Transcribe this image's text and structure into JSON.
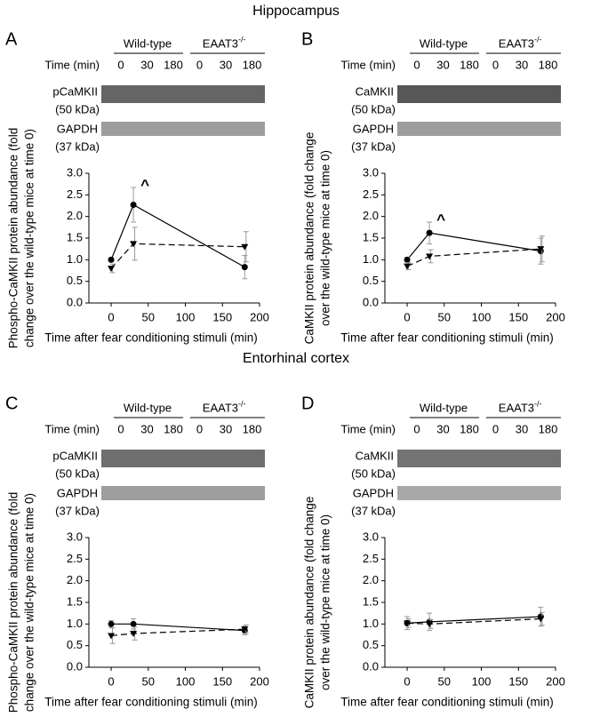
{
  "headings": [
    "Hippocampus",
    "Entorhinal cortex"
  ],
  "chart_data": [
    {
      "type": "line",
      "panel_label": "A",
      "blot": {
        "groups": [
          {
            "label": "Wild-type"
          },
          {
            "label": "EAAT3",
            "sup": "-/-"
          }
        ],
        "time_label": "Time (min)",
        "times": [
          0,
          30,
          180,
          0,
          30,
          180
        ],
        "bands": [
          {
            "name": "pCaMKII",
            "size": "(50 kDa)",
            "color": "#4a4a4a"
          },
          {
            "name": "GAPDH",
            "size": "(37 kDa)",
            "color": "#8c8c8c"
          }
        ]
      },
      "ylabel": [
        "Phospho-CaMKII protein abundance (fold",
        "change over the wild-type mice at time 0)"
      ],
      "xlabel": "Time after fear conditioning stimuli (min)",
      "xlim": [
        -30,
        200
      ],
      "xticks": [
        0,
        50,
        100,
        150,
        200
      ],
      "ylim": [
        0,
        3
      ],
      "yticks": [
        {
          "value": 0,
          "label": "0.0"
        },
        0.5,
        {
          "value": 1,
          "label": "1.0"
        },
        1.5,
        {
          "value": 2,
          "label": "2.0"
        },
        2.5,
        {
          "value": 3,
          "label": "3.0"
        }
      ],
      "x": [
        0,
        30,
        180
      ],
      "series": [
        {
          "color": "#000000",
          "marker": "circle",
          "dashed": false,
          "values": [
            1.0,
            2.27,
            0.83
          ],
          "errors": [
            0.05,
            0.4,
            0.27
          ],
          "point_labels": [
            null,
            "^",
            null
          ]
        },
        {
          "color": "#000000",
          "marker": "triangle",
          "dashed": true,
          "values": [
            0.8,
            1.37,
            1.3
          ],
          "errors": [
            0.1,
            0.38,
            0.35
          ]
        }
      ]
    },
    {
      "type": "line",
      "panel_label": "B",
      "blot": {
        "groups": [
          {
            "label": "Wild-type"
          },
          {
            "label": "EAAT3",
            "sup": "-/-"
          }
        ],
        "time_label": "Time (min)",
        "times": [
          0,
          30,
          180,
          0,
          30,
          180
        ],
        "bands": [
          {
            "name": "CaMKII",
            "size": "(50 kDa)",
            "color": "#3a3a3a"
          },
          {
            "name": "GAPDH",
            "size": "(37 kDa)",
            "color": "#8c8c8c"
          }
        ]
      },
      "ylabel": [
        "CaMKII protein abundance (fold change",
        "over the wild-type mice at time 0)"
      ],
      "xlabel": "Time after fear conditioning stimuli (min)",
      "xlim": [
        -30,
        200
      ],
      "xticks": [
        0,
        50,
        100,
        150,
        200
      ],
      "ylim": [
        0,
        3
      ],
      "yticks": [
        {
          "value": 0,
          "label": "0.0"
        },
        0.5,
        {
          "value": 1,
          "label": "1.0"
        },
        1.5,
        {
          "value": 2,
          "label": "2.0"
        },
        2.5,
        {
          "value": 3,
          "label": "3.0"
        }
      ],
      "x": [
        0,
        30,
        180
      ],
      "series": [
        {
          "color": "#000000",
          "marker": "circle",
          "dashed": false,
          "values": [
            1.0,
            1.62,
            1.2
          ],
          "errors": [
            0.05,
            0.25,
            0.3
          ],
          "point_labels": [
            null,
            "^",
            null
          ]
        },
        {
          "color": "#000000",
          "marker": "triangle",
          "dashed": true,
          "values": [
            0.85,
            1.08,
            1.25
          ],
          "errors": [
            0.08,
            0.15,
            0.3
          ]
        }
      ]
    },
    {
      "type": "line",
      "panel_label": "C",
      "blot": {
        "groups": [
          {
            "label": "Wild-type"
          },
          {
            "label": "EAAT3",
            "sup": "-/-"
          }
        ],
        "time_label": "Time (min)",
        "times": [
          0,
          30,
          180,
          0,
          30,
          180
        ],
        "bands": [
          {
            "name": "pCaMKII",
            "size": "(50 kDa)",
            "color": "#555555"
          },
          {
            "name": "GAPDH",
            "size": "(37 kDa)",
            "color": "#8c8c8c"
          }
        ]
      },
      "ylabel": [
        "Phospho-CaMKII protein abundance (fold",
        "change over the wild-type mice at time 0)"
      ],
      "xlabel": "Time after fear conditioning stimuli (min)",
      "xlim": [
        -30,
        200
      ],
      "xticks": [
        0,
        50,
        100,
        150,
        200
      ],
      "ylim": [
        0,
        3
      ],
      "yticks": [
        {
          "value": 0,
          "label": "0.0"
        },
        0.5,
        {
          "value": 1,
          "label": "1.0"
        },
        1.5,
        {
          "value": 2,
          "label": "2.0"
        },
        2.5,
        {
          "value": 3,
          "label": "3.0"
        }
      ],
      "x": [
        0,
        30,
        180
      ],
      "series": [
        {
          "color": "#000000",
          "marker": "circle",
          "dashed": false,
          "values": [
            1.0,
            1.0,
            0.85
          ],
          "errors": [
            0.08,
            0.12,
            0.1
          ]
        },
        {
          "color": "#000000",
          "marker": "triangle",
          "dashed": true,
          "values": [
            0.73,
            0.78,
            0.88
          ],
          "errors": [
            0.18,
            0.15,
            0.1
          ]
        }
      ]
    },
    {
      "type": "line",
      "panel_label": "D",
      "blot": {
        "groups": [
          {
            "label": "Wild-type"
          },
          {
            "label": "EAAT3",
            "sup": "-/-"
          }
        ],
        "time_label": "Time (min)",
        "times": [
          0,
          30,
          180,
          0,
          30,
          180
        ],
        "bands": [
          {
            "name": "CaMKII",
            "size": "(50 kDa)",
            "color": "#5a5a5a"
          },
          {
            "name": "GAPDH",
            "size": "(37 kDa)",
            "color": "#999999"
          }
        ]
      },
      "ylabel": [
        "CaMKII protein abundance (fold change",
        "over the wild-type mice at time 0)"
      ],
      "xlabel": "Time after fear conditioning stimuli (min)",
      "xlim": [
        -30,
        200
      ],
      "xticks": [
        0,
        50,
        100,
        150,
        200
      ],
      "ylim": [
        0,
        3
      ],
      "yticks": [
        {
          "value": 0,
          "label": "0.0"
        },
        0.5,
        {
          "value": 1,
          "label": "1.0"
        },
        1.5,
        {
          "value": 2,
          "label": "2.0"
        },
        2.5,
        {
          "value": 3,
          "label": "3.0"
        }
      ],
      "x": [
        0,
        30,
        180
      ],
      "series": [
        {
          "color": "#000000",
          "marker": "circle",
          "dashed": false,
          "values": [
            1.02,
            1.05,
            1.17
          ],
          "errors": [
            0.15,
            0.2,
            0.22
          ]
        },
        {
          "color": "#000000",
          "marker": "triangle",
          "dashed": true,
          "values": [
            1.02,
            1.0,
            1.12
          ],
          "errors": [
            0.1,
            0.1,
            0.15
          ]
        }
      ]
    }
  ]
}
